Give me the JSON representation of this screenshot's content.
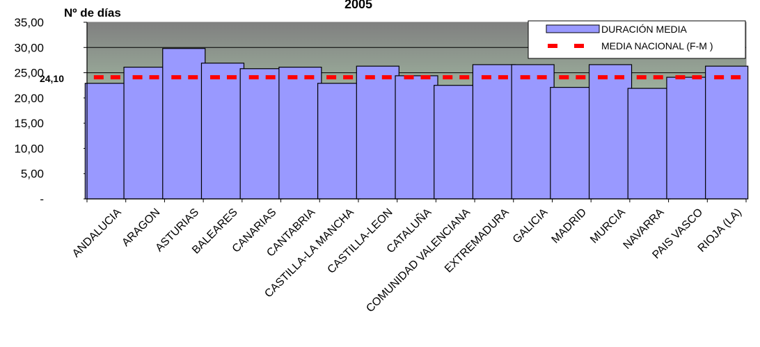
{
  "chart_data": {
    "type": "bar",
    "title": "2005",
    "ylabel": "Nº de días",
    "xlabel": "",
    "ylim": [
      0,
      35
    ],
    "yticks": [
      {
        "value": 0,
        "label": "-"
      },
      {
        "value": 5,
        "label": "5,00"
      },
      {
        "value": 10,
        "label": "10,00"
      },
      {
        "value": 15,
        "label": "15,00"
      },
      {
        "value": 20,
        "label": "20,00"
      },
      {
        "value": 25,
        "label": "25,00"
      },
      {
        "value": 30,
        "label": "30,00"
      },
      {
        "value": 35,
        "label": "35,00"
      }
    ],
    "categories": [
      "ANDALUCIA",
      "ARAGON",
      "ASTURIAS",
      "BALEARES",
      "CANARIAS",
      "CANTABRIA",
      "CASTILLA-LA MANCHA",
      "CASTILLA-LEON",
      "CATALUÑA",
      "COMUNIDAD VALENCIANA",
      "EXTREMADURA",
      "GALICIA",
      "MADRID",
      "MURCIA",
      "NAVARRA",
      "PAIS VASCO",
      "RIOJA (LA)"
    ],
    "series": [
      {
        "name": "DURACIÓN MEDIA",
        "type": "bar",
        "color": "#9999ff",
        "values": [
          22.9,
          26.1,
          29.8,
          26.9,
          25.8,
          26.1,
          22.9,
          26.3,
          24.4,
          22.5,
          26.6,
          26.6,
          22.1,
          26.6,
          21.9,
          24.1,
          26.3
        ]
      },
      {
        "name": "MEDIA NACIONAL (F-M )",
        "type": "line",
        "color": "#ff0000",
        "value": 24.1
      }
    ],
    "reference_label": "24,10",
    "grid": true,
    "legend_position": "top-right",
    "colors": {
      "plot_top": "#808080",
      "plot_bottom": "#ccffcc",
      "bar": "#9999ff",
      "bar_border": "#000000",
      "line": "#ff0000"
    }
  }
}
